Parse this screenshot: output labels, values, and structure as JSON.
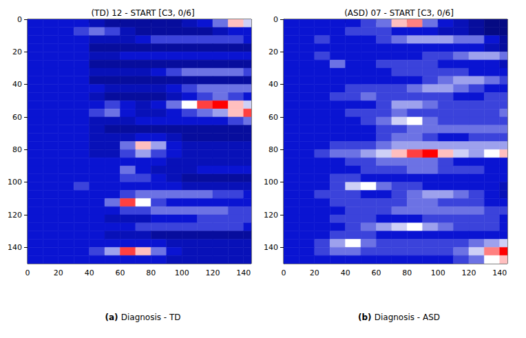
{
  "chart_data": [
    {
      "type": "heatmap",
      "title": "(TD) 12 - START [C3, 0/6]",
      "caption_label": "(a)",
      "caption": "Diagnosis - TD",
      "xlim": [
        0,
        145
      ],
      "ylim": [
        0,
        150
      ],
      "xticks": [
        0,
        20,
        40,
        60,
        80,
        100,
        120,
        140
      ],
      "yticks": [
        0,
        20,
        40,
        60,
        80,
        100,
        120,
        140
      ],
      "grid": false,
      "color_range": [
        0,
        1
      ],
      "cells": {
        "x_edges": [
          0,
          10,
          20,
          30,
          40,
          50,
          60,
          70,
          80,
          90,
          100,
          110,
          120,
          130,
          140,
          150
        ],
        "y_edges": [
          0,
          5,
          10,
          15,
          20,
          25,
          30,
          35,
          40,
          45,
          50,
          55,
          60,
          65,
          70,
          75,
          80,
          85,
          90,
          95,
          100,
          105,
          110,
          115,
          120,
          125,
          130,
          135,
          140,
          145,
          150
        ],
        "z": [
          [
            0.3,
            0.3,
            0.3,
            0.3,
            0.25,
            0.2,
            0.2,
            0.2,
            0.2,
            0.2,
            0.25,
            0.3,
            0.4,
            0.6,
            0.5
          ],
          [
            0.3,
            0.3,
            0.3,
            0.35,
            0.4,
            0.35,
            0.25,
            0.2,
            0.2,
            0.2,
            0.2,
            0.2,
            0.25,
            0.3,
            0.3
          ],
          [
            0.3,
            0.3,
            0.3,
            0.3,
            0.25,
            0.25,
            0.25,
            0.3,
            0.35,
            0.35,
            0.35,
            0.35,
            0.35,
            0.35,
            0.3
          ],
          [
            0.3,
            0.3,
            0.3,
            0.3,
            0.2,
            0.2,
            0.2,
            0.2,
            0.2,
            0.2,
            0.2,
            0.2,
            0.2,
            0.2,
            0.2
          ],
          [
            0.3,
            0.3,
            0.3,
            0.3,
            0.25,
            0.25,
            0.3,
            0.3,
            0.3,
            0.3,
            0.3,
            0.3,
            0.3,
            0.3,
            0.3
          ],
          [
            0.3,
            0.3,
            0.3,
            0.3,
            0.2,
            0.2,
            0.2,
            0.2,
            0.2,
            0.2,
            0.2,
            0.2,
            0.2,
            0.2,
            0.2
          ],
          [
            0.3,
            0.3,
            0.3,
            0.3,
            0.25,
            0.25,
            0.25,
            0.25,
            0.3,
            0.35,
            0.4,
            0.4,
            0.4,
            0.4,
            0.35
          ],
          [
            0.3,
            0.3,
            0.3,
            0.3,
            0.2,
            0.2,
            0.2,
            0.2,
            0.2,
            0.2,
            0.2,
            0.2,
            0.2,
            0.2,
            0.2
          ],
          [
            0.3,
            0.3,
            0.3,
            0.3,
            0.3,
            0.25,
            0.25,
            0.25,
            0.25,
            0.3,
            0.35,
            0.4,
            0.4,
            0.4,
            0.4
          ],
          [
            0.3,
            0.3,
            0.3,
            0.3,
            0.25,
            0.2,
            0.2,
            0.2,
            0.2,
            0.25,
            0.3,
            0.35,
            0.4,
            0.35,
            0.3
          ],
          [
            0.3,
            0.3,
            0.3,
            0.3,
            0.3,
            0.35,
            0.3,
            0.25,
            0.3,
            0.4,
            0.55,
            0.7,
            0.75,
            0.6,
            0.5
          ],
          [
            0.3,
            0.3,
            0.3,
            0.3,
            0.35,
            0.4,
            0.3,
            0.25,
            0.25,
            0.3,
            0.35,
            0.4,
            0.45,
            0.6,
            0.7
          ],
          [
            0.3,
            0.3,
            0.3,
            0.3,
            0.25,
            0.25,
            0.25,
            0.3,
            0.3,
            0.3,
            0.3,
            0.3,
            0.3,
            0.35,
            0.4
          ],
          [
            0.3,
            0.3,
            0.3,
            0.3,
            0.25,
            0.2,
            0.2,
            0.2,
            0.2,
            0.2,
            0.2,
            0.2,
            0.2,
            0.2,
            0.2
          ],
          [
            0.3,
            0.3,
            0.3,
            0.3,
            0.25,
            0.25,
            0.25,
            0.3,
            0.3,
            0.25,
            0.2,
            0.2,
            0.2,
            0.2,
            0.2
          ],
          [
            0.3,
            0.3,
            0.3,
            0.3,
            0.25,
            0.25,
            0.4,
            0.6,
            0.45,
            0.3,
            0.25,
            0.25,
            0.25,
            0.25,
            0.25
          ],
          [
            0.3,
            0.3,
            0.3,
            0.3,
            0.25,
            0.25,
            0.35,
            0.45,
            0.35,
            0.3,
            0.25,
            0.25,
            0.25,
            0.25,
            0.25
          ],
          [
            0.3,
            0.3,
            0.3,
            0.3,
            0.3,
            0.3,
            0.3,
            0.3,
            0.3,
            0.25,
            0.25,
            0.25,
            0.25,
            0.25,
            0.25
          ],
          [
            0.3,
            0.3,
            0.3,
            0.3,
            0.3,
            0.3,
            0.4,
            0.3,
            0.25,
            0.25,
            0.25,
            0.3,
            0.3,
            0.3,
            0.3
          ],
          [
            0.3,
            0.3,
            0.3,
            0.3,
            0.3,
            0.3,
            0.35,
            0.35,
            0.3,
            0.25,
            0.2,
            0.2,
            0.2,
            0.2,
            0.2
          ],
          [
            0.3,
            0.3,
            0.3,
            0.35,
            0.3,
            0.3,
            0.3,
            0.3,
            0.3,
            0.3,
            0.25,
            0.25,
            0.25,
            0.25,
            0.25
          ],
          [
            0.3,
            0.3,
            0.3,
            0.3,
            0.3,
            0.3,
            0.35,
            0.4,
            0.4,
            0.4,
            0.4,
            0.4,
            0.35,
            0.35,
            0.3
          ],
          [
            0.3,
            0.3,
            0.3,
            0.3,
            0.3,
            0.4,
            0.7,
            0.55,
            0.35,
            0.3,
            0.3,
            0.3,
            0.3,
            0.3,
            0.3
          ],
          [
            0.3,
            0.3,
            0.3,
            0.3,
            0.3,
            0.3,
            0.35,
            0.35,
            0.4,
            0.4,
            0.4,
            0.4,
            0.4,
            0.35,
            0.35
          ],
          [
            0.3,
            0.3,
            0.3,
            0.3,
            0.3,
            0.25,
            0.25,
            0.25,
            0.3,
            0.3,
            0.3,
            0.35,
            0.35,
            0.35,
            0.35
          ],
          [
            0.3,
            0.3,
            0.3,
            0.3,
            0.3,
            0.3,
            0.3,
            0.35,
            0.35,
            0.35,
            0.35,
            0.35,
            0.35,
            0.35,
            0.3
          ],
          [
            0.3,
            0.3,
            0.3,
            0.3,
            0.3,
            0.25,
            0.25,
            0.25,
            0.2,
            0.2,
            0.2,
            0.2,
            0.2,
            0.2,
            0.2
          ],
          [
            0.3,
            0.3,
            0.3,
            0.3,
            0.3,
            0.3,
            0.3,
            0.3,
            0.3,
            0.25,
            0.25,
            0.25,
            0.25,
            0.25,
            0.25
          ],
          [
            0.3,
            0.3,
            0.3,
            0.3,
            0.35,
            0.45,
            0.7,
            0.6,
            0.4,
            0.3,
            0.25,
            0.25,
            0.25,
            0.25,
            0.25
          ],
          [
            0.3,
            0.3,
            0.3,
            0.3,
            0.3,
            0.3,
            0.3,
            0.3,
            0.3,
            0.25,
            0.25,
            0.25,
            0.25,
            0.25,
            0.25
          ]
        ]
      }
    },
    {
      "type": "heatmap",
      "title": "(ASD) 07 - START [C3, 0/6]",
      "caption_label": "(b)",
      "caption": "Diagnosis - ASD",
      "xlim": [
        0,
        145
      ],
      "ylim": [
        0,
        150
      ],
      "xticks": [
        0,
        20,
        40,
        60,
        80,
        100,
        120,
        140
      ],
      "yticks": [
        0,
        20,
        40,
        60,
        80,
        100,
        120,
        140
      ],
      "grid": false,
      "color_range": [
        0,
        1
      ],
      "cells": {
        "x_edges": [
          0,
          10,
          20,
          30,
          40,
          50,
          60,
          70,
          80,
          90,
          100,
          110,
          120,
          130,
          140,
          150
        ],
        "y_edges": [
          0,
          5,
          10,
          15,
          20,
          25,
          30,
          35,
          40,
          45,
          50,
          55,
          60,
          65,
          70,
          75,
          80,
          85,
          90,
          95,
          100,
          105,
          110,
          115,
          120,
          125,
          130,
          135,
          140,
          145,
          150
        ],
        "z": [
          [
            0.3,
            0.3,
            0.3,
            0.3,
            0.3,
            0.35,
            0.4,
            0.6,
            0.65,
            0.4,
            0.3,
            0.25,
            0.2,
            0.15,
            0.15
          ],
          [
            0.3,
            0.3,
            0.3,
            0.3,
            0.35,
            0.35,
            0.35,
            0.3,
            0.3,
            0.3,
            0.25,
            0.25,
            0.2,
            0.15,
            0.15
          ],
          [
            0.3,
            0.3,
            0.35,
            0.3,
            0.3,
            0.3,
            0.35,
            0.4,
            0.45,
            0.45,
            0.45,
            0.4,
            0.4,
            0.3,
            0.2
          ],
          [
            0.3,
            0.3,
            0.3,
            0.3,
            0.3,
            0.3,
            0.3,
            0.3,
            0.3,
            0.3,
            0.3,
            0.3,
            0.3,
            0.25,
            0.2
          ],
          [
            0.3,
            0.3,
            0.35,
            0.3,
            0.3,
            0.3,
            0.3,
            0.3,
            0.3,
            0.35,
            0.35,
            0.4,
            0.45,
            0.45,
            0.4
          ],
          [
            0.3,
            0.3,
            0.3,
            0.4,
            0.3,
            0.3,
            0.35,
            0.35,
            0.35,
            0.35,
            0.3,
            0.3,
            0.3,
            0.3,
            0.25
          ],
          [
            0.3,
            0.3,
            0.3,
            0.3,
            0.3,
            0.3,
            0.3,
            0.35,
            0.35,
            0.35,
            0.35,
            0.35,
            0.3,
            0.3,
            0.3
          ],
          [
            0.3,
            0.3,
            0.3,
            0.3,
            0.3,
            0.3,
            0.3,
            0.3,
            0.3,
            0.35,
            0.4,
            0.45,
            0.45,
            0.4,
            0.35
          ],
          [
            0.3,
            0.3,
            0.3,
            0.3,
            0.35,
            0.35,
            0.35,
            0.35,
            0.4,
            0.45,
            0.45,
            0.4,
            0.35,
            0.3,
            0.3
          ],
          [
            0.3,
            0.3,
            0.3,
            0.35,
            0.35,
            0.4,
            0.35,
            0.35,
            0.35,
            0.35,
            0.35,
            0.3,
            0.3,
            0.35,
            0.35
          ],
          [
            0.3,
            0.3,
            0.3,
            0.3,
            0.3,
            0.3,
            0.35,
            0.45,
            0.45,
            0.4,
            0.35,
            0.35,
            0.35,
            0.35,
            0.35
          ],
          [
            0.3,
            0.3,
            0.3,
            0.3,
            0.35,
            0.35,
            0.35,
            0.4,
            0.35,
            0.35,
            0.35,
            0.35,
            0.35,
            0.35,
            0.4
          ],
          [
            0.3,
            0.3,
            0.3,
            0.3,
            0.3,
            0.35,
            0.4,
            0.5,
            0.55,
            0.4,
            0.35,
            0.35,
            0.35,
            0.35,
            0.35
          ],
          [
            0.3,
            0.3,
            0.3,
            0.3,
            0.3,
            0.3,
            0.35,
            0.35,
            0.4,
            0.4,
            0.4,
            0.4,
            0.4,
            0.4,
            0.4
          ],
          [
            0.3,
            0.3,
            0.3,
            0.3,
            0.3,
            0.3,
            0.35,
            0.4,
            0.4,
            0.35,
            0.3,
            0.3,
            0.35,
            0.35,
            0.35
          ],
          [
            0.3,
            0.3,
            0.3,
            0.35,
            0.35,
            0.35,
            0.4,
            0.45,
            0.45,
            0.45,
            0.45,
            0.45,
            0.45,
            0.45,
            0.45
          ],
          [
            0.3,
            0.3,
            0.35,
            0.4,
            0.4,
            0.45,
            0.5,
            0.6,
            0.7,
            0.75,
            0.6,
            0.5,
            0.45,
            0.55,
            0.6
          ],
          [
            0.3,
            0.3,
            0.3,
            0.3,
            0.35,
            0.35,
            0.4,
            0.4,
            0.4,
            0.4,
            0.35,
            0.3,
            0.3,
            0.3,
            0.3
          ],
          [
            0.3,
            0.3,
            0.3,
            0.3,
            0.3,
            0.35,
            0.35,
            0.35,
            0.4,
            0.4,
            0.35,
            0.35,
            0.35,
            0.3,
            0.3
          ],
          [
            0.3,
            0.3,
            0.3,
            0.35,
            0.35,
            0.3,
            0.3,
            0.3,
            0.3,
            0.3,
            0.3,
            0.3,
            0.3,
            0.3,
            0.3
          ],
          [
            0.3,
            0.3,
            0.3,
            0.35,
            0.5,
            0.55,
            0.4,
            0.35,
            0.35,
            0.3,
            0.3,
            0.3,
            0.3,
            0.3,
            0.25
          ],
          [
            0.3,
            0.3,
            0.35,
            0.35,
            0.35,
            0.3,
            0.3,
            0.35,
            0.4,
            0.45,
            0.45,
            0.4,
            0.35,
            0.3,
            0.25
          ],
          [
            0.3,
            0.3,
            0.3,
            0.35,
            0.35,
            0.35,
            0.35,
            0.35,
            0.4,
            0.4,
            0.35,
            0.35,
            0.35,
            0.3,
            0.3
          ],
          [
            0.3,
            0.3,
            0.3,
            0.3,
            0.35,
            0.35,
            0.35,
            0.4,
            0.4,
            0.4,
            0.4,
            0.4,
            0.4,
            0.35,
            0.35
          ],
          [
            0.3,
            0.3,
            0.3,
            0.35,
            0.35,
            0.35,
            0.3,
            0.3,
            0.3,
            0.35,
            0.35,
            0.35,
            0.35,
            0.35,
            0.3
          ],
          [
            0.3,
            0.3,
            0.3,
            0.3,
            0.35,
            0.4,
            0.45,
            0.5,
            0.55,
            0.45,
            0.4,
            0.35,
            0.35,
            0.35,
            0.3
          ],
          [
            0.3,
            0.3,
            0.3,
            0.35,
            0.35,
            0.35,
            0.3,
            0.3,
            0.3,
            0.3,
            0.3,
            0.3,
            0.3,
            0.3,
            0.3
          ],
          [
            0.3,
            0.3,
            0.35,
            0.45,
            0.55,
            0.4,
            0.35,
            0.35,
            0.35,
            0.35,
            0.35,
            0.35,
            0.4,
            0.45,
            0.5
          ],
          [
            0.3,
            0.3,
            0.35,
            0.4,
            0.4,
            0.35,
            0.35,
            0.35,
            0.35,
            0.35,
            0.35,
            0.4,
            0.5,
            0.65,
            0.75
          ],
          [
            0.3,
            0.3,
            0.3,
            0.3,
            0.3,
            0.3,
            0.3,
            0.3,
            0.3,
            0.3,
            0.3,
            0.35,
            0.4,
            0.55,
            0.6
          ]
        ]
      }
    }
  ]
}
